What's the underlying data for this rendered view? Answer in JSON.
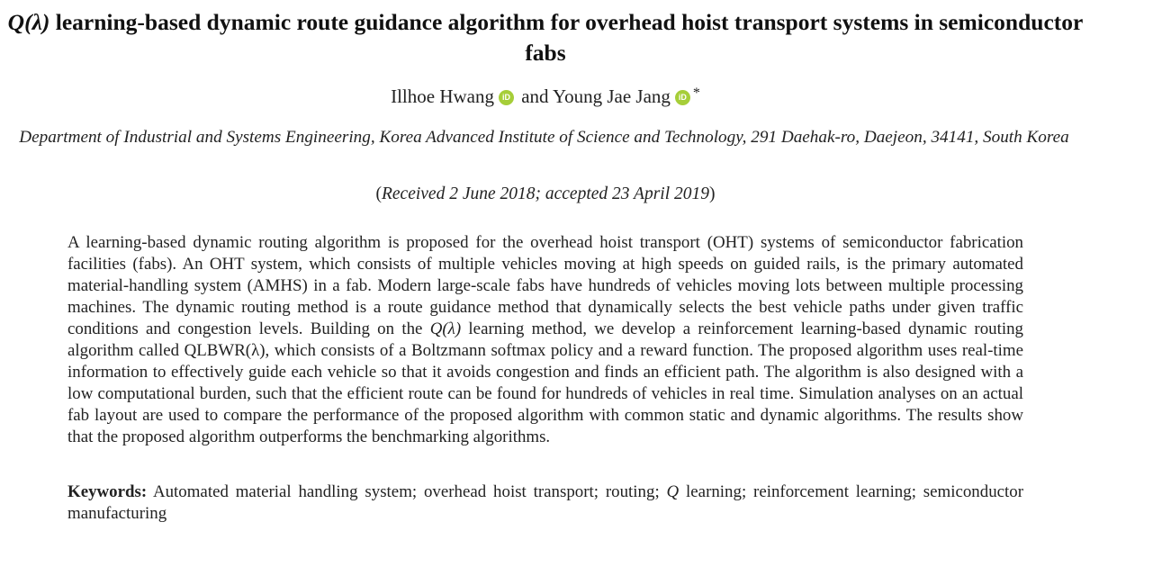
{
  "title": {
    "symbol": "Q(λ)",
    "text": " learning-based dynamic route guidance algorithm for overhead hoist transport systems in semiconductor fabs"
  },
  "authors": {
    "author1": "Illhoe Hwang",
    "connector": " and ",
    "author2": "Young Jae Jang",
    "orcid_badge": "iD",
    "corresponding_mark": "*",
    "orcid_icon": "orcid-icon",
    "orcid_color": "#a6ce39"
  },
  "affiliation": "Department of Industrial and Systems Engineering, Korea Advanced Institute of Science and Technology, 291 Daehak-ro, Daejeon, 34141, South Korea",
  "history": {
    "open": "(",
    "text": "Received 2 June 2018; accepted 23 April 2019",
    "close": ")"
  },
  "abstract": {
    "part1": "A learning-based dynamic routing algorithm is proposed for the overhead hoist transport (OHT) systems of semiconductor fabrication facilities (fabs). An OHT system, which consists of multiple vehicles moving at high speeds on guided rails, is the primary automated material-handling system (AMHS) in a fab. Modern large-scale fabs have hundreds of vehicles moving lots between multiple processing machines. The dynamic routing method is a route guidance method that dynamically selects the best vehicle paths under given traffic conditions and congestion levels. Building on the ",
    "q_symbol": "Q(λ)",
    "part2": " learning method, we develop a reinforcement learning-based dynamic routing algorithm called QLBWR(λ), which consists of a Boltzmann softmax policy and a reward function. The proposed algorithm uses real-time information to effectively guide each vehicle so that it avoids congestion and finds an efficient path. The algorithm is also designed with a low computational burden, such that the efficient route can be found for hundreds of vehicles in real time. Simulation analyses on an actual fab layout are used to compare the performance of the proposed algorithm with common static and dynamic algorithms. The results show that the proposed algorithm outperforms the benchmarking algorithms."
  },
  "keywords": {
    "label": "Keywords:",
    "part1": " Automated material handling system; overhead hoist transport; routing; ",
    "q_symbol": "Q",
    "part2": " learning; reinforcement learning; semiconductor manufacturing"
  }
}
